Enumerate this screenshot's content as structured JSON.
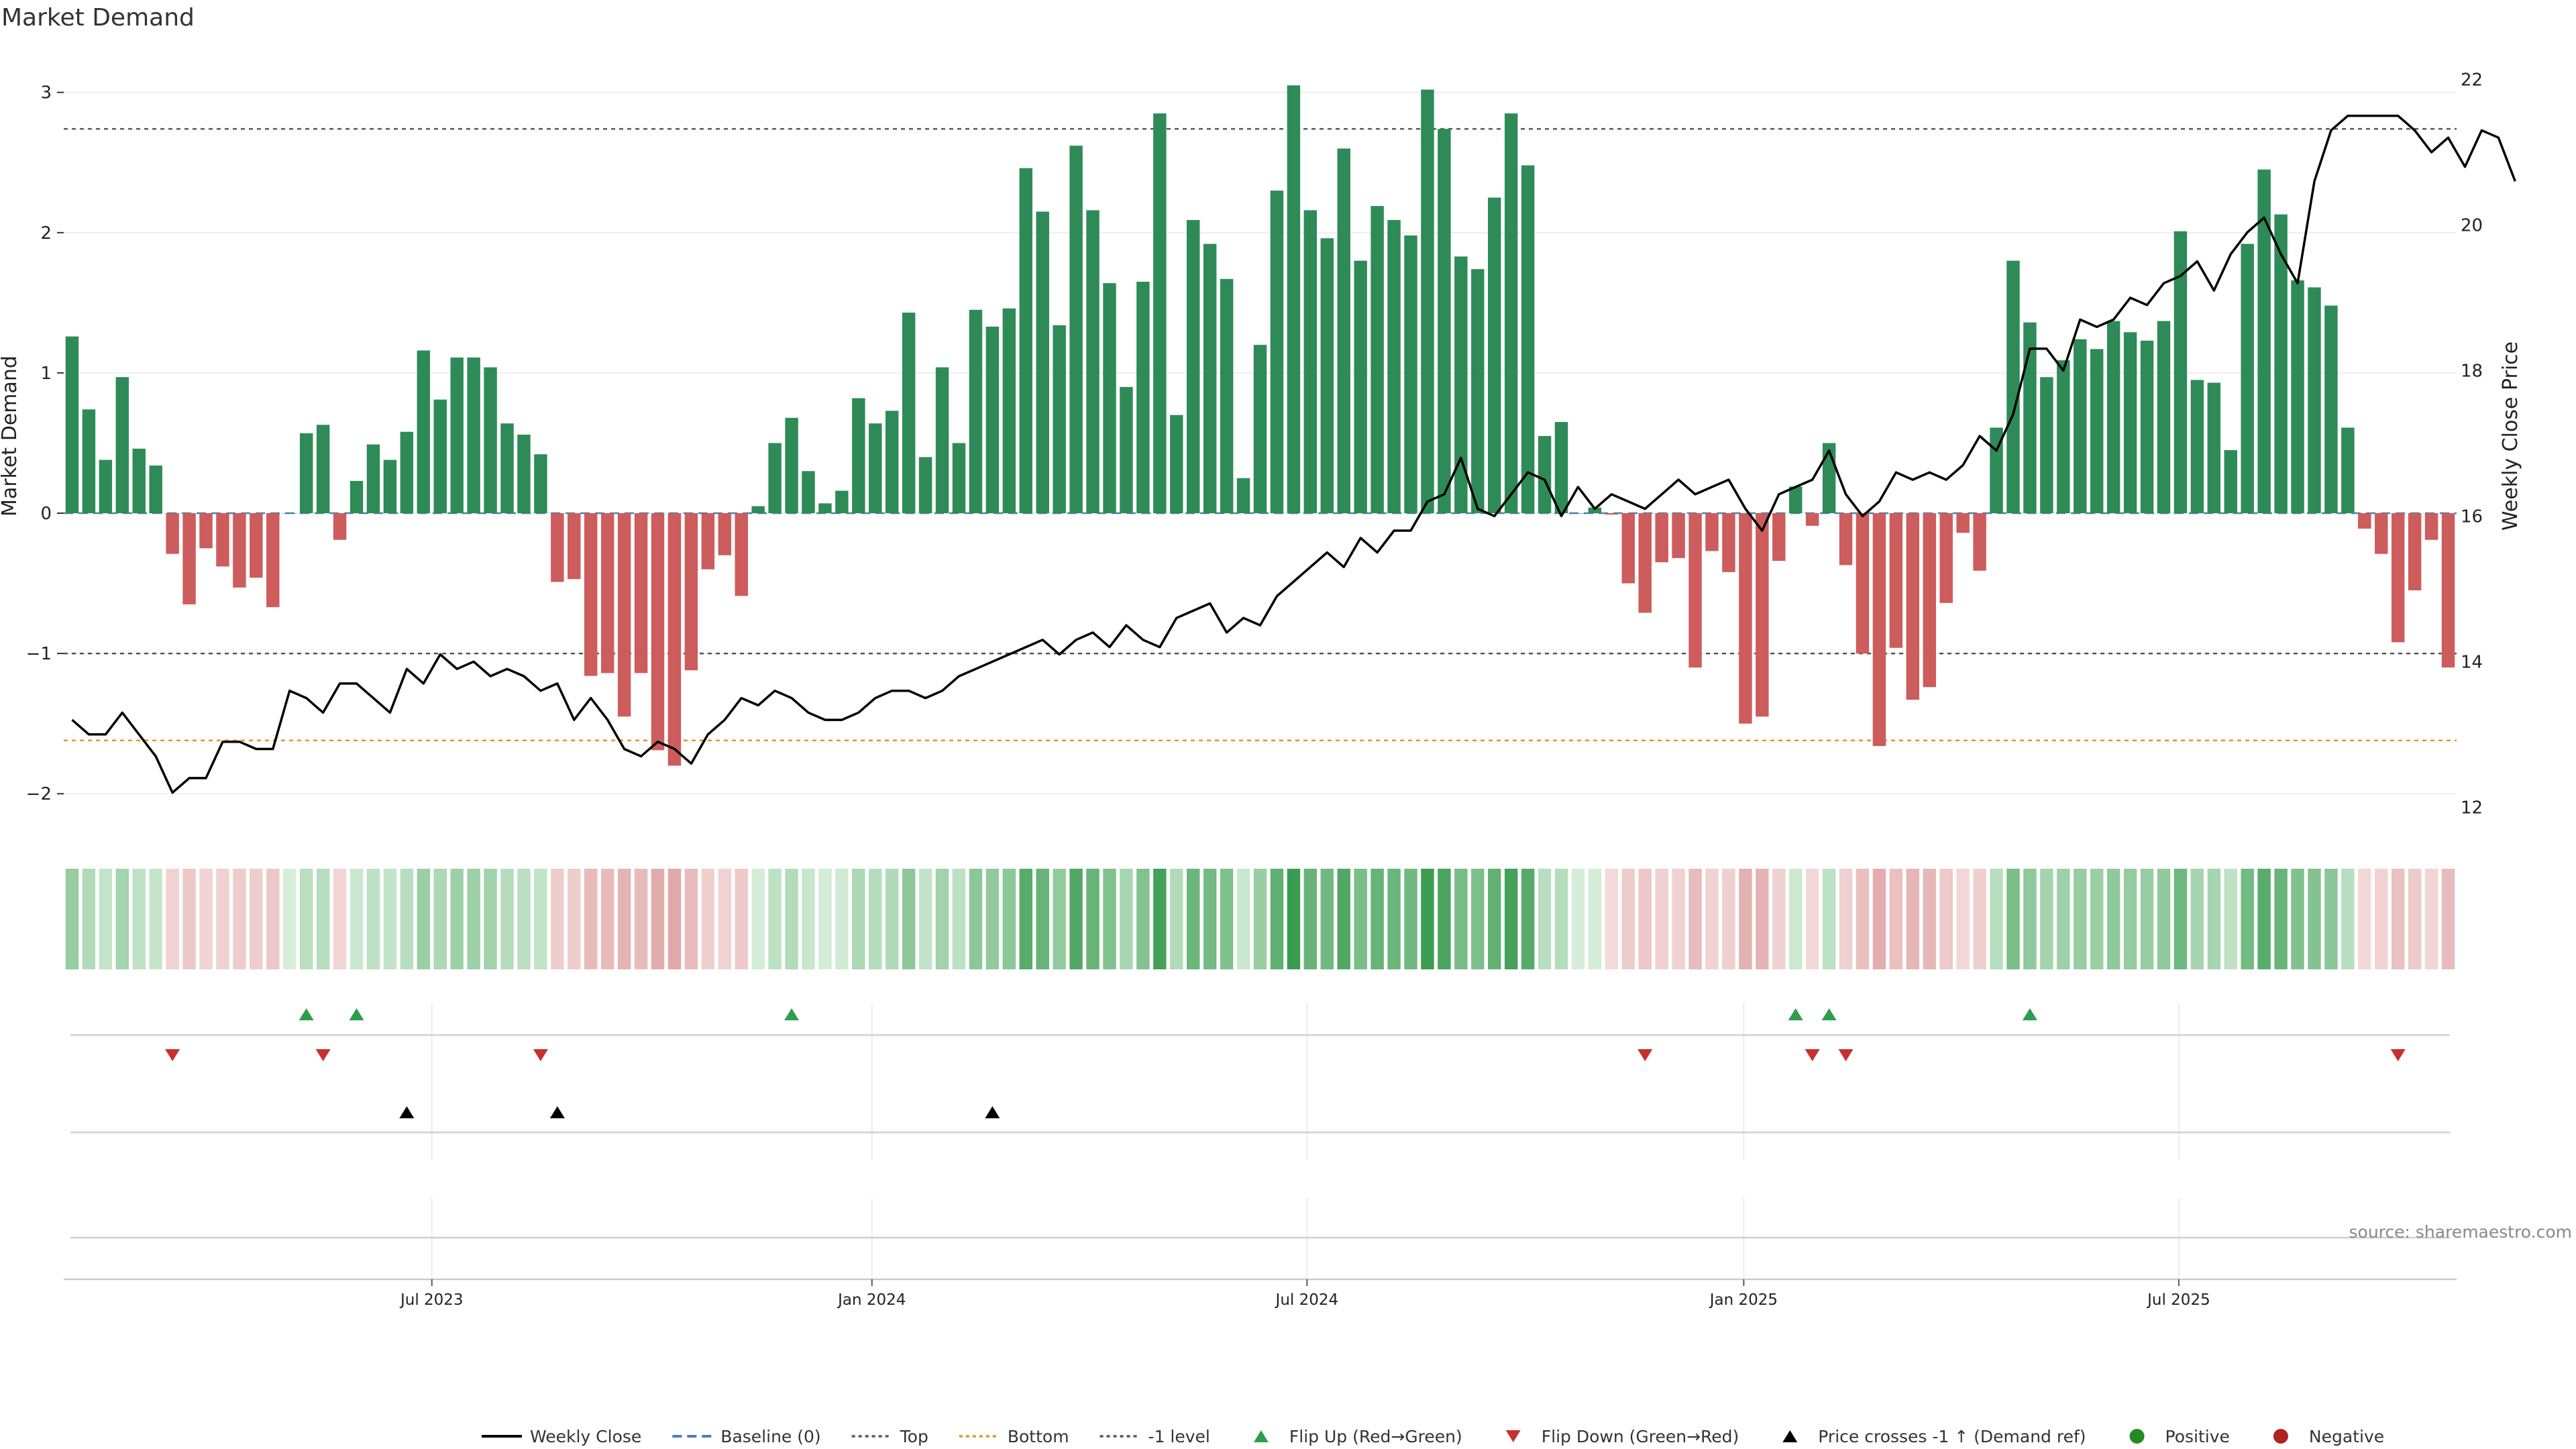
{
  "chart_data": {
    "type": "bar",
    "title": "Market Demand",
    "ylabel": "Market Demand",
    "y2label": "Weekly Close Price",
    "ylim": [
      -2.2,
      3.3
    ],
    "y2lim": [
      11.8,
      22.4
    ],
    "yticks": [
      -2,
      -1,
      0,
      1,
      2,
      3
    ],
    "y2ticks": [
      12,
      14,
      16,
      18,
      20,
      22
    ],
    "top_level": 2.74,
    "bottom_level": -1.62,
    "minus1_level": -1,
    "baseline": 0,
    "x_ticks": [
      "Jul 2023",
      "Jan 2024",
      "Jul 2024",
      "Jan 2025",
      "Jul 2025"
    ],
    "x_tick_index": [
      21.5,
      47.8,
      73.8,
      99.9,
      125.9
    ],
    "demand": [
      1.26,
      0.74,
      0.38,
      0.97,
      0.46,
      0.34,
      -0.29,
      -0.65,
      -0.25,
      -0.38,
      -0.53,
      -0.46,
      -0.67,
      0.0,
      0.57,
      0.63,
      -0.19,
      0.23,
      0.49,
      0.38,
      0.58,
      1.16,
      0.81,
      1.11,
      1.11,
      1.04,
      0.64,
      0.56,
      0.42,
      -0.49,
      -0.47,
      -1.16,
      -1.14,
      -1.45,
      -1.14,
      -1.69,
      -1.8,
      -1.12,
      -0.4,
      -0.3,
      -0.59,
      0.05,
      0.5,
      0.68,
      0.3,
      0.07,
      0.16,
      0.82,
      0.64,
      0.73,
      1.43,
      0.4,
      1.04,
      0.5,
      1.45,
      1.33,
      1.46,
      2.46,
      2.15,
      1.34,
      2.62,
      2.16,
      1.64,
      0.9,
      1.65,
      2.85,
      0.7,
      2.09,
      1.92,
      1.67,
      0.25,
      1.2,
      2.3,
      3.05,
      2.16,
      1.96,
      2.6,
      1.8,
      2.19,
      2.09,
      1.98,
      3.02,
      2.74,
      1.83,
      1.74,
      2.25,
      2.85,
      2.48,
      0.55,
      0.65,
      0.0,
      0.04,
      -0.01,
      -0.5,
      -0.71,
      -0.35,
      -0.32,
      -1.1,
      -0.27,
      -0.42,
      -1.5,
      -1.45,
      -0.34,
      0.19,
      -0.09,
      0.5,
      -0.37,
      -1.0,
      -1.66,
      -0.96,
      -1.33,
      -1.24,
      -0.64,
      -0.14,
      -0.41,
      0.61,
      1.8,
      1.36,
      0.97,
      1.09,
      1.24,
      1.17,
      1.37,
      1.29,
      1.23,
      1.37,
      2.01,
      0.95,
      0.93,
      0.45,
      1.92,
      2.45,
      2.13,
      1.66,
      1.61,
      1.48,
      0.61,
      -0.11,
      -0.29,
      -0.92,
      -0.55,
      -0.19,
      -1.1
    ],
    "weekly_close": [
      13.2,
      13.0,
      13.0,
      13.3,
      13.0,
      12.7,
      12.2,
      12.4,
      12.4,
      12.9,
      12.9,
      12.8,
      12.8,
      13.6,
      13.5,
      13.3,
      13.7,
      13.7,
      13.5,
      13.3,
      13.9,
      13.7,
      14.1,
      13.9,
      14.0,
      13.8,
      13.9,
      13.8,
      13.6,
      13.7,
      13.2,
      13.5,
      13.2,
      12.8,
      12.7,
      12.9,
      12.8,
      12.6,
      13.0,
      13.2,
      13.5,
      13.4,
      13.6,
      13.5,
      13.3,
      13.2,
      13.2,
      13.3,
      13.5,
      13.6,
      13.6,
      13.5,
      13.6,
      13.8,
      13.9,
      14.0,
      14.1,
      14.2,
      14.3,
      14.1,
      14.3,
      14.4,
      14.2,
      14.5,
      14.3,
      14.2,
      14.6,
      14.7,
      14.8,
      14.4,
      14.6,
      14.5,
      14.9,
      15.1,
      15.3,
      15.5,
      15.3,
      15.7,
      15.5,
      15.8,
      15.8,
      16.2,
      16.3,
      16.8,
      16.1,
      16.0,
      16.3,
      16.6,
      16.5,
      16.0,
      16.4,
      16.1,
      16.3,
      16.2,
      16.1,
      16.3,
      16.5,
      16.3,
      16.4,
      16.5,
      16.1,
      15.8,
      16.3,
      16.4,
      16.5,
      16.9,
      16.3,
      16.0,
      16.2,
      16.6,
      16.5,
      16.6,
      16.5,
      16.7,
      17.1,
      16.9,
      17.4,
      18.3,
      18.3,
      18.0,
      18.7,
      18.6,
      18.7,
      19.0,
      18.9,
      19.2,
      19.3,
      19.5,
      19.1,
      19.6,
      19.9,
      20.1,
      19.6,
      19.2,
      20.6,
      21.3,
      21.5,
      21.5,
      21.5,
      21.5,
      21.3,
      21.0,
      21.2,
      20.8,
      21.3,
      21.2,
      20.6
    ],
    "flip_up": [
      14,
      17,
      43,
      103,
      105,
      117
    ],
    "flip_down": [
      6,
      15,
      28,
      94,
      104,
      106,
      139
    ],
    "price_cross": [
      20,
      29,
      55
    ],
    "legend": [
      {
        "label": "Weekly Close",
        "kind": "line",
        "color": "#000000"
      },
      {
        "label": "Baseline (0)",
        "kind": "dash",
        "color": "#4a7fb5"
      },
      {
        "label": "Top",
        "kind": "dot",
        "color": "#555577"
      },
      {
        "label": "Bottom",
        "kind": "dot",
        "color": "#d99a26"
      },
      {
        "label": "-1 level",
        "kind": "dot",
        "color": "#555555"
      },
      {
        "label": "Flip Up (Red→Green)",
        "kind": "tri-up",
        "color": "#2e9e4e"
      },
      {
        "label": "Flip Down (Green→Red)",
        "kind": "tri-down",
        "color": "#c7302e"
      },
      {
        "label": "Price crosses -1 ↑ (Demand ref)",
        "kind": "tri-up",
        "color": "#000000"
      },
      {
        "label": "Positive",
        "kind": "dot-circle",
        "color": "#228b22"
      },
      {
        "label": "Negative",
        "kind": "dot-circle",
        "color": "#b22222"
      }
    ],
    "source": "source: sharemaestro.com",
    "colors": {
      "positive": "#2e8b57",
      "negative": "#cd5c5c",
      "line": "#000000"
    }
  }
}
